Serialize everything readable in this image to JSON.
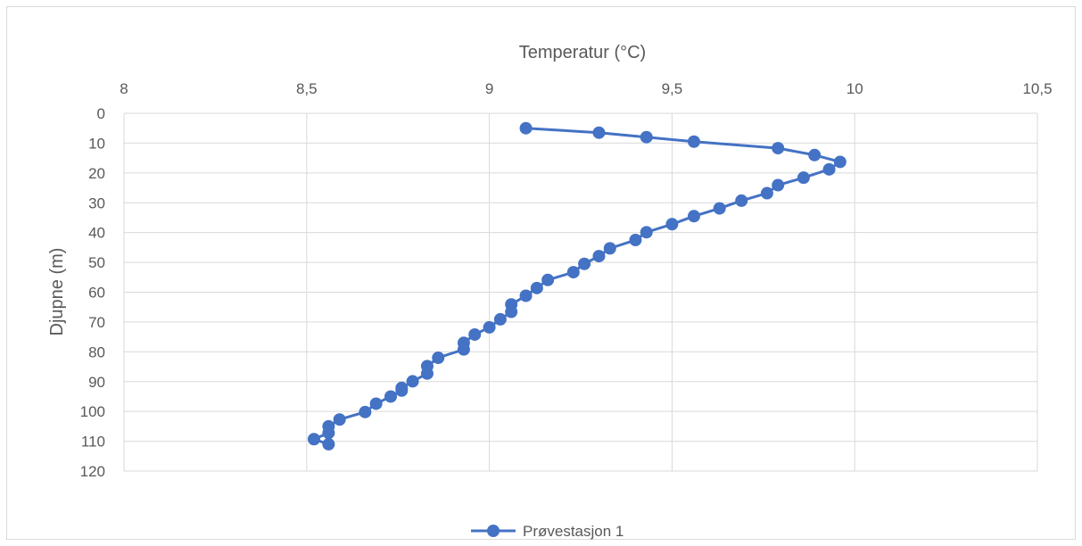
{
  "chart_data": {
    "type": "line",
    "xlabel": "Temperatur (°C)",
    "ylabel": "Djupne (m)",
    "x_axis_position": "top",
    "y_axis_reversed": true,
    "xlim": [
      8,
      10.5
    ],
    "ylim": [
      0,
      120
    ],
    "x_ticks": [
      "8",
      "8,5",
      "9",
      "9,5",
      "10",
      "10,5"
    ],
    "y_ticks": [
      "0",
      "10",
      "20",
      "30",
      "40",
      "50",
      "60",
      "70",
      "80",
      "90",
      "100",
      "110",
      "120"
    ],
    "grid": true,
    "legend_position": "bottom",
    "colors": {
      "series": "#4472c4",
      "grid": "#d9d9d9",
      "text": "#595959"
    },
    "series": [
      {
        "name": "Prøvestasjon 1",
        "points": [
          [
            9.1,
            5.0
          ],
          [
            9.3,
            6.5
          ],
          [
            9.43,
            8.0
          ],
          [
            9.56,
            9.5
          ],
          [
            9.79,
            11.7
          ],
          [
            9.89,
            14.0
          ],
          [
            9.96,
            16.3
          ],
          [
            9.93,
            18.8
          ],
          [
            9.86,
            21.6
          ],
          [
            9.79,
            24.1
          ],
          [
            9.76,
            26.8
          ],
          [
            9.69,
            29.3
          ],
          [
            9.63,
            31.9
          ],
          [
            9.56,
            34.5
          ],
          [
            9.5,
            37.2
          ],
          [
            9.43,
            39.9
          ],
          [
            9.4,
            42.5
          ],
          [
            9.33,
            45.3
          ],
          [
            9.3,
            47.9
          ],
          [
            9.26,
            50.5
          ],
          [
            9.23,
            53.3
          ],
          [
            9.16,
            55.9
          ],
          [
            9.13,
            58.6
          ],
          [
            9.1,
            61.2
          ],
          [
            9.06,
            64.1
          ],
          [
            9.06,
            66.6
          ],
          [
            9.03,
            69.1
          ],
          [
            9.0,
            71.8
          ],
          [
            8.96,
            74.2
          ],
          [
            8.93,
            77.0
          ],
          [
            8.93,
            79.2
          ],
          [
            8.86,
            82.0
          ],
          [
            8.83,
            84.8
          ],
          [
            8.83,
            87.3
          ],
          [
            8.79,
            89.9
          ],
          [
            8.76,
            92.1
          ],
          [
            8.76,
            93.0
          ],
          [
            8.73,
            95.0
          ],
          [
            8.69,
            97.4
          ],
          [
            8.66,
            100.2
          ],
          [
            8.59,
            102.7
          ],
          [
            8.56,
            105.0
          ],
          [
            8.56,
            107.2
          ],
          [
            8.52,
            109.3
          ],
          [
            8.56,
            111.0
          ]
        ]
      }
    ]
  }
}
